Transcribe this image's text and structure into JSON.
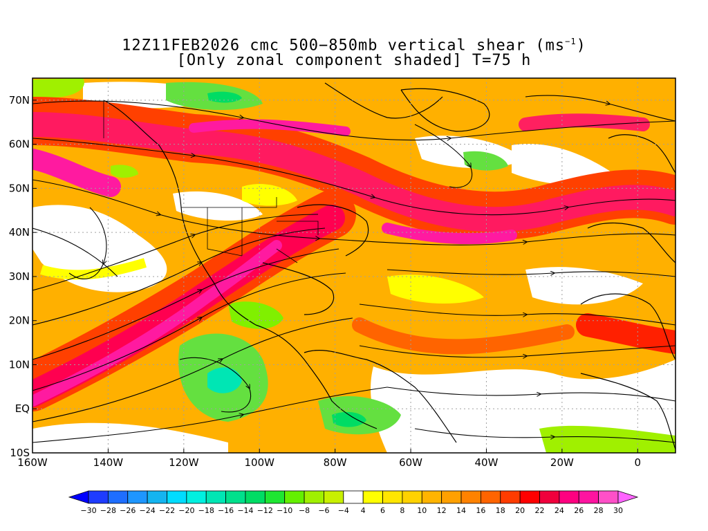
{
  "title": {
    "line1_main": "12Z11FEB2026 cmc 500−850mb vertical shear (ms",
    "line1_sup": "−1",
    "line1_end": ")",
    "line2": "[Only zonal component shaded] T=75 h"
  },
  "map": {
    "lon_range": [
      -160,
      10
    ],
    "lat_range": [
      -10,
      75
    ],
    "lat_ticks": [
      {
        "value": 70,
        "label": "70N"
      },
      {
        "value": 60,
        "label": "60N"
      },
      {
        "value": 50,
        "label": "50N"
      },
      {
        "value": 40,
        "label": "40N"
      },
      {
        "value": 30,
        "label": "30N"
      },
      {
        "value": 20,
        "label": "20N"
      },
      {
        "value": 10,
        "label": "10N"
      },
      {
        "value": 0,
        "label": "EQ"
      },
      {
        "value": -10,
        "label": "10S"
      }
    ],
    "lon_ticks": [
      {
        "value": -160,
        "label": "160W"
      },
      {
        "value": -140,
        "label": "140W"
      },
      {
        "value": -120,
        "label": "120W"
      },
      {
        "value": -100,
        "label": "100W"
      },
      {
        "value": -80,
        "label": "80W"
      },
      {
        "value": -60,
        "label": "60W"
      },
      {
        "value": -40,
        "label": "40W"
      },
      {
        "value": -20,
        "label": "20W"
      },
      {
        "value": 0,
        "label": "0"
      }
    ],
    "gridlines": true
  },
  "colorbar": {
    "labels": [
      "−30",
      "−28",
      "−26",
      "−24",
      "−22",
      "−20",
      "−18",
      "−16",
      "−14",
      "−12",
      "−10",
      "−8",
      "−6",
      "−4",
      "4",
      "6",
      "8",
      "10",
      "12",
      "14",
      "16",
      "18",
      "20",
      "22",
      "24",
      "26",
      "28",
      "30"
    ],
    "colors": [
      "#0000ff",
      "#1e3cff",
      "#1e6eff",
      "#1e96ff",
      "#14b4f0",
      "#00dcff",
      "#00f0e0",
      "#00e6b4",
      "#00e08c",
      "#00dc64",
      "#1ee632",
      "#64f000",
      "#a0f000",
      "#c8f000",
      "#ffffff",
      "#ffff00",
      "#ffe600",
      "#ffd200",
      "#ffb400",
      "#ffa000",
      "#ff8200",
      "#ff6400",
      "#ff3c00",
      "#ff0000",
      "#f0003c",
      "#ff0080",
      "#ff14a0",
      "#ff50c8",
      "#ff64ff"
    ]
  }
}
